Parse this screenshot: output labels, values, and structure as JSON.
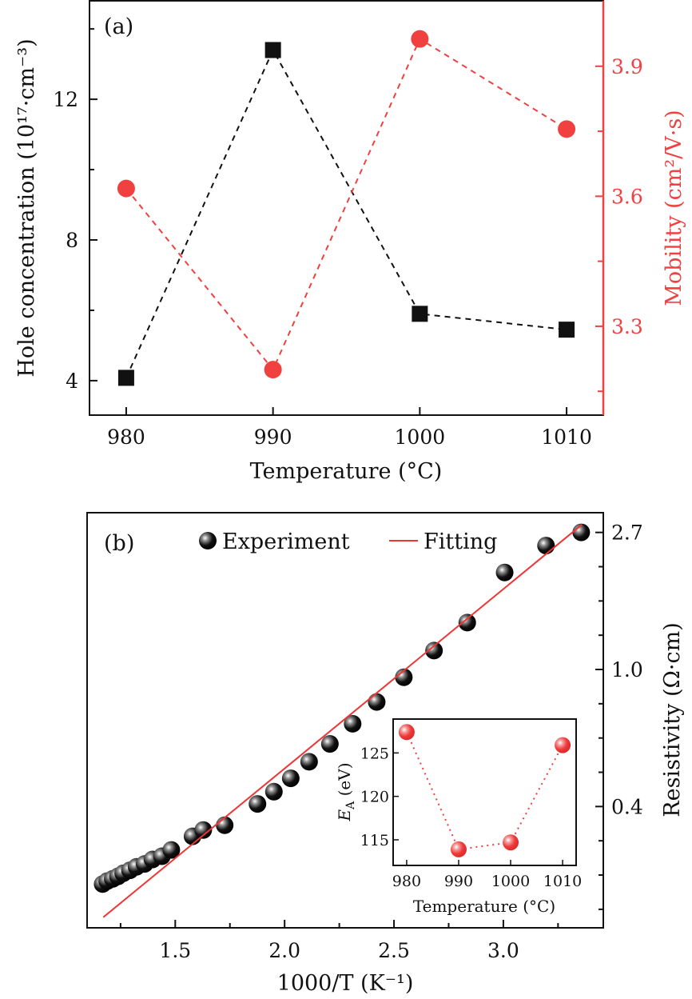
{
  "colors": {
    "black": "#111111",
    "red": "#f04040",
    "red_line": "#ee3535"
  },
  "chart_data": [
    {
      "panel": "(a)",
      "type": "line",
      "xlabel": "Temperature (°C)",
      "ylabel_left": "Hole concentration (10¹⁷·cm⁻³)",
      "ylabel_right": "Mobility (cm²/V·s)",
      "x": [
        980,
        990,
        1000,
        1010
      ],
      "xlim": [
        977.5,
        1012.5
      ],
      "xticks": [
        980,
        990,
        1000,
        1010
      ],
      "ylim_left": [
        3.02,
        14.8
      ],
      "yticks_left": [
        4,
        8,
        12
      ],
      "ylim_right": [
        3.095,
        4.051
      ],
      "yticks_right": [
        "3.3",
        "3.6",
        "3.9"
      ],
      "series": [
        {
          "name": "Hole concentration",
          "axis": "left",
          "marker": "square",
          "line": "dashed",
          "color": "#111111",
          "values": [
            4.08,
            13.4,
            5.9,
            5.45
          ]
        },
        {
          "name": "Mobility",
          "axis": "right",
          "marker": "circle",
          "line": "dashed",
          "color": "#f04040",
          "values": [
            3.618,
            3.2,
            3.963,
            3.755
          ]
        }
      ],
      "grid": false
    },
    {
      "panel": "(b)",
      "type": "scatter",
      "xlabel": "1000/T (K⁻¹)",
      "ylabel_right": "Resistivity (Ω·cm)",
      "yscale": "ln",
      "xlim": [
        1.097,
        3.457
      ],
      "xticks": [
        "1.5",
        "2.0",
        "2.5",
        "3.0"
      ],
      "ylim_ln": [
        -1.885,
        1.144
      ],
      "yticks": [
        "0.4",
        "1.0",
        "2.7"
      ],
      "legend": {
        "position": "top",
        "entries": [
          "Experiment",
          "Fitting"
        ]
      },
      "series": [
        {
          "name": "Experiment",
          "marker": "sphere",
          "color": "#111111",
          "x": [
            1.168,
            1.189,
            1.214,
            1.238,
            1.262,
            1.293,
            1.323,
            1.36,
            1.396,
            1.439,
            1.482,
            1.579,
            1.628,
            1.726,
            1.876,
            1.951,
            2.028,
            2.112,
            2.207,
            2.311,
            2.421,
            2.545,
            2.683,
            2.835,
            3.006,
            3.195,
            3.356
          ],
          "y": [
            0.209,
            0.2135,
            0.217,
            0.221,
            0.226,
            0.231,
            0.237,
            0.242,
            0.25,
            0.256,
            0.268,
            0.296,
            0.31,
            0.321,
            0.375,
            0.41,
            0.452,
            0.51,
            0.581,
            0.673,
            0.789,
            0.945,
            1.148,
            1.408,
            2.03,
            2.47,
            2.72
          ]
        },
        {
          "name": "Fitting",
          "type": "line",
          "color": "#ee3535",
          "x": [
            1.171,
            3.359
          ],
          "y": [
            0.164,
            2.877
          ]
        }
      ],
      "inset": {
        "type": "line",
        "xlabel": "Temperature (°C)",
        "ylabel": {
          "symbol": "E",
          "subscript": "A",
          "unit": " (eV)"
        },
        "x": [
          980,
          990,
          1000,
          1010
        ],
        "values": [
          127.4,
          113.9,
          114.7,
          125.9
        ],
        "xlim": [
          977.4,
          1012.6
        ],
        "xticks": [
          980,
          990,
          1000,
          1010
        ],
        "ylim": [
          112.05,
          128.9
        ],
        "yticks": [
          115,
          120,
          125
        ],
        "line": "dotted",
        "color": "#f04040"
      }
    }
  ]
}
